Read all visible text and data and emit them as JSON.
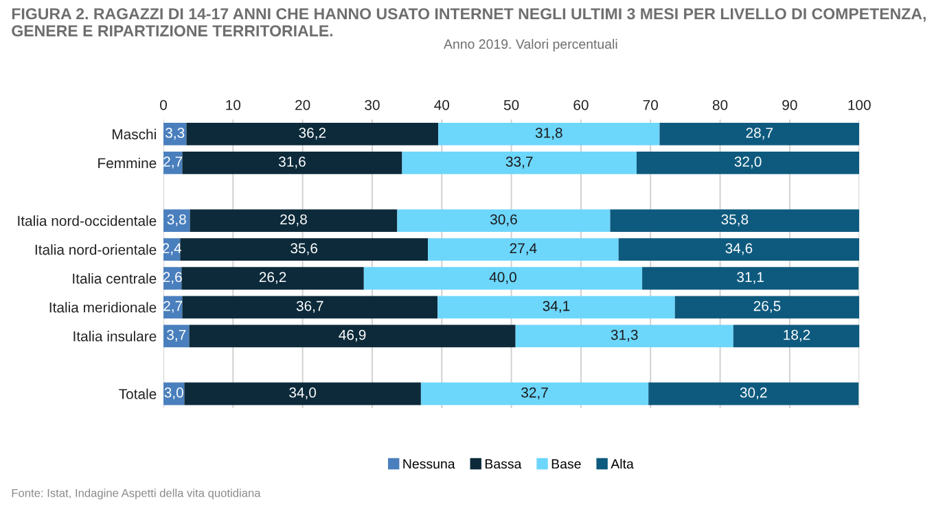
{
  "chart_data": {
    "type": "bar",
    "orientation": "horizontal",
    "stacked": true,
    "title": "FIGURA 2. RAGAZZI DI 14-17 ANNI CHE HANNO USATO INTERNET NEGLI ULTIMI 3 MESI PER LIVELLO DI COMPETENZA, GENERE E RIPARTIZIONE TERRITORIALE.",
    "subtitle": "Anno 2019. Valori percentuali",
    "categories": [
      "Maschi",
      "Femmine",
      null,
      "Italia nord-occidentale",
      "Italia nord-orientale",
      "Italia centrale",
      "Italia meridionale",
      "Italia insulare",
      null,
      "Totale"
    ],
    "series": [
      {
        "name": "Nessuna",
        "color": "#4a7fbd",
        "values": [
          3.3,
          2.7,
          null,
          3.8,
          2.4,
          2.6,
          2.7,
          3.7,
          null,
          3.0
        ],
        "value_labels": [
          "3,3",
          "2,7",
          null,
          "3,8",
          "2,4",
          "2,6",
          "2,7",
          "3,7",
          null,
          "3,0"
        ]
      },
      {
        "name": "Bassa",
        "color": "#0c2a3a",
        "values": [
          36.2,
          31.6,
          null,
          29.8,
          35.6,
          26.2,
          36.7,
          46.9,
          null,
          34.0
        ],
        "value_labels": [
          "36,2",
          "31,6",
          null,
          "29,8",
          "35,6",
          "26,2",
          "36,7",
          "46,9",
          null,
          "34,0"
        ]
      },
      {
        "name": "Base",
        "color": "#6dd6fb",
        "values": [
          31.8,
          33.7,
          null,
          30.6,
          27.4,
          40.0,
          34.1,
          31.3,
          null,
          32.7
        ],
        "value_labels": [
          "31,8",
          "33,7",
          null,
          "30,6",
          "27,4",
          "40,0",
          "34,1",
          "31,3",
          null,
          "32,7"
        ]
      },
      {
        "name": "Alta",
        "color": "#0e5a7e",
        "values": [
          28.7,
          32.0,
          null,
          35.8,
          34.6,
          31.1,
          26.5,
          18.2,
          null,
          30.2
        ],
        "value_labels": [
          "28,7",
          "32,0",
          null,
          "35,8",
          "34,6",
          "31,1",
          "26,5",
          "18,2",
          null,
          "30,2"
        ]
      }
    ],
    "xlim": [
      0,
      100
    ],
    "xticks": [
      0,
      10,
      20,
      30,
      40,
      50,
      60,
      70,
      80,
      90,
      100
    ],
    "grid": "x",
    "legend": "bottom",
    "annotations": [
      "Fonte: Istat, Indagine Aspetti della vita quotidiana"
    ]
  }
}
